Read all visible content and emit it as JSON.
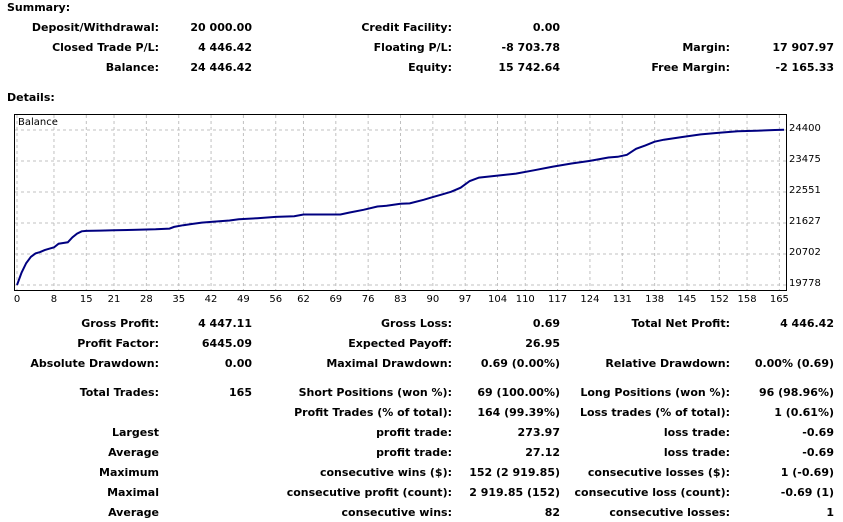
{
  "summary": {
    "title": "Summary:",
    "deposit_label": "Deposit/Withdrawal:",
    "deposit": "20 000.00",
    "credit_label": "Credit Facility:",
    "credit": "0.00",
    "closed_pl_label": "Closed Trade P/L:",
    "closed_pl": "4 446.42",
    "floating_pl_label": "Floating P/L:",
    "floating_pl": "-8 703.78",
    "margin_label": "Margin:",
    "margin": "17 907.97",
    "balance_label": "Balance:",
    "balance": "24 446.42",
    "equity_label": "Equity:",
    "equity": "15 742.64",
    "free_margin_label": "Free Margin:",
    "free_margin": "-2 165.33"
  },
  "details": {
    "title": "Details:"
  },
  "chart_data": {
    "type": "line",
    "series": [
      {
        "name": "Balance",
        "x": [
          0,
          1,
          2,
          3,
          4,
          5,
          6,
          7,
          8,
          9,
          10,
          11,
          12,
          13,
          14,
          15,
          18,
          21,
          25,
          30,
          33,
          34,
          36,
          38,
          40,
          42,
          46,
          48,
          52,
          56,
          60,
          62,
          66,
          70,
          72,
          75,
          78,
          80,
          83,
          85,
          88,
          90,
          92,
          94,
          96,
          98,
          100,
          104,
          108,
          112,
          116,
          120,
          124,
          128,
          130,
          132,
          134,
          136,
          138,
          140,
          144,
          148,
          152,
          156,
          160,
          164,
          166
        ],
        "values": [
          19778,
          20150,
          20430,
          20620,
          20720,
          20760,
          20820,
          20860,
          20900,
          21010,
          21030,
          21050,
          21200,
          21310,
          21380,
          21390,
          21400,
          21410,
          21420,
          21440,
          21460,
          21510,
          21560,
          21600,
          21640,
          21660,
          21700,
          21740,
          21770,
          21810,
          21830,
          21880,
          21880,
          21880,
          21940,
          22020,
          22120,
          22140,
          22200,
          22210,
          22320,
          22400,
          22480,
          22560,
          22680,
          22880,
          22980,
          23040,
          23100,
          23200,
          23310,
          23400,
          23480,
          23580,
          23600,
          23660,
          23840,
          23940,
          24050,
          24110,
          24190,
          24270,
          24320,
          24360,
          24380,
          24400,
          24410
        ]
      }
    ],
    "x_ticks": [
      "0",
      "8",
      "15",
      "21",
      "28",
      "35",
      "42",
      "49",
      "56",
      "62",
      "69",
      "76",
      "83",
      "90",
      "97",
      "104",
      "110",
      "117",
      "124",
      "131",
      "138",
      "145",
      "152",
      "158",
      "165"
    ],
    "y_ticks": [
      "24400",
      "23475",
      "22551",
      "21627",
      "20702",
      "19778"
    ],
    "xlim": [
      0,
      166
    ],
    "ylim": [
      19778,
      24400
    ],
    "grid": true
  },
  "stats": {
    "gross_profit_label": "Gross Profit:",
    "gross_profit": "4 447.11",
    "gross_loss_label": "Gross Loss:",
    "gross_loss": "0.69",
    "total_net_profit_label": "Total Net Profit:",
    "total_net_profit": "4 446.42",
    "profit_factor_label": "Profit Factor:",
    "profit_factor": "6445.09",
    "expected_payoff_label": "Expected Payoff:",
    "expected_payoff": "26.95",
    "absolute_drawdown_label": "Absolute Drawdown:",
    "absolute_drawdown": "0.00",
    "maximal_drawdown_label": "Maximal Drawdown:",
    "maximal_drawdown": "0.69 (0.00%)",
    "relative_drawdown_label": "Relative Drawdown:",
    "relative_drawdown": "0.00% (0.69)",
    "total_trades_label": "Total Trades:",
    "total_trades": "165",
    "short_positions_label": "Short Positions (won %):",
    "short_positions": "69 (100.00%)",
    "long_positions_label": "Long Positions (won %):",
    "long_positions": "96 (98.96%)",
    "profit_trades_label": "Profit Trades (% of total):",
    "profit_trades": "164 (99.39%)",
    "loss_trades_label": "Loss trades (% of total):",
    "loss_trades": "1 (0.61%)",
    "largest_label": "Largest",
    "largest_profit_label": "profit trade:",
    "largest_profit": "273.97",
    "largest_loss_label": "loss trade:",
    "largest_loss": "-0.69",
    "average_label": "Average",
    "average_profit_label": "profit trade:",
    "average_profit": "27.12",
    "average_loss_label": "loss trade:",
    "average_loss": "-0.69",
    "maximum_label": "Maximum",
    "max_cons_wins_label": "consecutive wins ($):",
    "max_cons_wins": "152 (2 919.85)",
    "max_cons_losses_label": "consecutive losses ($):",
    "max_cons_losses": "1 (-0.69)",
    "maximal_label": "Maximal",
    "max_cons_profit_label": "consecutive profit (count):",
    "max_cons_profit": "2 919.85 (152)",
    "max_cons_loss_label": "consecutive loss (count):",
    "max_cons_loss": "-0.69 (1)",
    "average2_label": "Average",
    "avg_cons_wins_label": "consecutive wins:",
    "avg_cons_wins": "82",
    "avg_cons_losses_label": "consecutive losses:",
    "avg_cons_losses": "1"
  }
}
